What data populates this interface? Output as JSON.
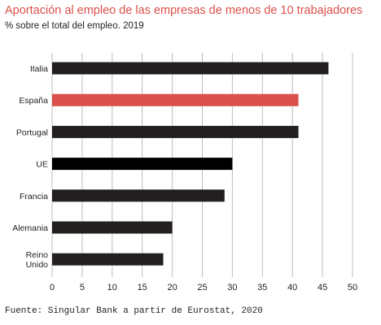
{
  "chart_data": {
    "type": "bar",
    "orientation": "horizontal",
    "title": "Aportación al empleo de las empresas de menos de 10 trabajadores",
    "subtitle": "% sobre el total del empleo. 2019",
    "source": "Fuente: Singular Bank a partir de Eurostat, 2020",
    "categories": [
      [
        "Italia"
      ],
      [
        "España"
      ],
      [
        "Portugal"
      ],
      [
        "UE"
      ],
      [
        "Francia"
      ],
      [
        "Alemania"
      ],
      [
        "Reino",
        "Unido"
      ]
    ],
    "values": [
      46,
      41,
      41,
      30,
      28.7,
      20,
      18.5
    ],
    "colors": [
      "#231f20",
      "#d9504a",
      "#231f20",
      "#000000",
      "#231f20",
      "#231f20",
      "#231f20"
    ],
    "xlim": [
      0,
      50
    ],
    "xticks": [
      0,
      5,
      10,
      15,
      20,
      25,
      30,
      35,
      40,
      45,
      50
    ],
    "grid": "vertical"
  }
}
